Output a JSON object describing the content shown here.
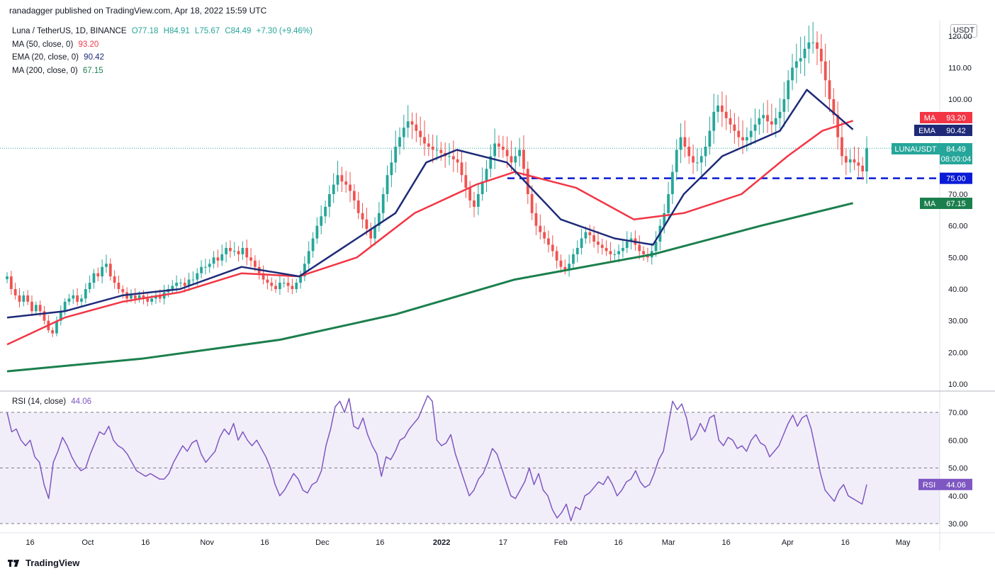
{
  "header": {
    "published": "ranadagger published on TradingView.com, Apr 18, 2022 15:59 UTC"
  },
  "legend": {
    "symbol": "Luna / TetherUS, 1D, BINANCE",
    "ohlc": {
      "o": "O77.18",
      "h": "H84.91",
      "l": "L75.67",
      "c": "C84.49",
      "chg": "+7.30 (+9.46%)"
    },
    "ma50": {
      "label": "MA (50, close, 0)",
      "value": "93.20",
      "color": "#f23645"
    },
    "ema20": {
      "label": "EMA (20, close, 0)",
      "value": "90.42",
      "color": "#1e2a78"
    },
    "ma200": {
      "label": "MA (200, close, 0)",
      "value": "67.15",
      "color": "#1b7f4d"
    }
  },
  "rsi_legend": {
    "label": "RSI (14, close)",
    "value": "44.06",
    "color": "#7e57c2"
  },
  "currency_button": "USDT",
  "price_tags": {
    "ma": {
      "name": "MA",
      "value": "93.20"
    },
    "ema": {
      "name": "EMA",
      "value": "90.42"
    },
    "last": {
      "name": "LUNAUSDT",
      "value": "84.49",
      "countdown": "08:00:04"
    },
    "level": {
      "value": "75.00"
    },
    "ma200": {
      "name": "MA",
      "value": "67.15"
    },
    "rsi": {
      "name": "RSI",
      "value": "44.06"
    }
  },
  "footer": {
    "brand": "TradingView"
  },
  "colors": {
    "up": "#26a69a",
    "down": "#ef5350",
    "ma50": "#f23645",
    "ema20": "#1e2a78",
    "ma200": "#1b7f4d",
    "rsi": "#7e57c2",
    "level": "#0a1bd6"
  },
  "chart_data": [
    {
      "type": "candlestick",
      "yaxis_ticks": [
        "10.00",
        "20.00",
        "30.00",
        "40.00",
        "50.00",
        "60.00",
        "70.00",
        "100.00",
        "110.00",
        "120.00"
      ],
      "ylim": [
        7,
        121
      ],
      "x_ticks": [
        "16",
        "Oct",
        "16",
        "Nov",
        "16",
        "Dec",
        "16",
        "2022",
        "17",
        "Feb",
        "16",
        "Mar",
        "16",
        "Apr",
        "16",
        "May"
      ],
      "x_range": [
        "2021-09-10",
        "2022-05-10"
      ],
      "horizontal_level": 75.0,
      "closes": [
        44,
        40,
        38,
        36,
        38,
        36,
        33,
        35,
        33,
        30,
        27,
        26,
        30,
        33,
        36,
        37,
        38,
        36,
        37,
        40,
        42,
        45,
        44,
        47,
        48,
        44,
        42,
        40,
        39,
        37,
        38,
        37,
        38,
        37,
        36,
        37,
        38,
        37,
        39,
        40,
        41,
        42,
        42,
        41,
        43,
        43,
        45,
        47,
        47,
        48,
        50,
        49,
        51,
        53,
        52,
        52,
        51,
        53,
        50,
        49,
        47,
        45,
        43,
        42,
        41,
        40,
        42,
        42,
        41,
        40,
        42,
        44,
        48,
        52,
        56,
        60,
        63,
        66,
        70,
        73,
        76,
        74,
        73,
        71,
        68,
        64,
        62,
        59,
        56,
        60,
        64,
        70,
        76,
        80,
        85,
        88,
        91,
        93,
        92,
        90,
        88,
        86,
        85,
        84,
        84,
        83,
        82,
        82,
        81,
        80,
        76,
        72,
        68,
        66,
        70,
        74,
        78,
        82,
        86,
        85,
        84,
        82,
        80,
        82,
        84,
        78,
        70,
        64,
        60,
        58,
        56,
        54,
        52,
        49,
        47,
        46,
        48,
        51,
        53,
        56,
        58,
        57,
        55,
        54,
        53,
        52,
        51,
        51,
        52,
        53,
        55,
        56,
        54,
        52,
        51,
        50,
        52,
        55,
        60,
        64,
        70,
        77,
        84,
        88,
        85,
        82,
        80,
        80,
        82,
        85,
        90,
        96,
        98,
        96,
        94,
        92,
        90,
        88,
        87,
        88,
        90,
        92,
        94,
        95,
        93,
        92,
        94,
        96,
        100,
        106,
        110,
        112,
        113,
        116,
        118,
        118,
        116,
        112,
        106,
        100,
        95,
        88,
        82,
        80,
        81,
        80,
        79,
        77.19,
        84.49
      ],
      "ma50": [
        {
          "d": "2021-09-10",
          "v": 22.5
        },
        {
          "d": "2021-09-25",
          "v": 31
        },
        {
          "d": "2021-10-10",
          "v": 36
        },
        {
          "d": "2021-10-25",
          "v": 39
        },
        {
          "d": "2021-11-10",
          "v": 45
        },
        {
          "d": "2021-11-25",
          "v": 44
        },
        {
          "d": "2021-12-10",
          "v": 50
        },
        {
          "d": "2021-12-25",
          "v": 64
        },
        {
          "d": "2022-01-10",
          "v": 73
        },
        {
          "d": "2022-01-20",
          "v": 77
        },
        {
          "d": "2022-02-05",
          "v": 72
        },
        {
          "d": "2022-02-20",
          "v": 62
        },
        {
          "d": "2022-03-05",
          "v": 64
        },
        {
          "d": "2022-03-20",
          "v": 70
        },
        {
          "d": "2022-04-01",
          "v": 82
        },
        {
          "d": "2022-04-10",
          "v": 90
        },
        {
          "d": "2022-04-18",
          "v": 93.2
        }
      ],
      "ema20": [
        {
          "d": "2021-09-10",
          "v": 31
        },
        {
          "d": "2021-09-25",
          "v": 33
        },
        {
          "d": "2021-10-10",
          "v": 38
        },
        {
          "d": "2021-10-25",
          "v": 40
        },
        {
          "d": "2021-11-10",
          "v": 47
        },
        {
          "d": "2021-11-25",
          "v": 44
        },
        {
          "d": "2021-12-05",
          "v": 52
        },
        {
          "d": "2021-12-20",
          "v": 64
        },
        {
          "d": "2021-12-28",
          "v": 80
        },
        {
          "d": "2022-01-05",
          "v": 84
        },
        {
          "d": "2022-01-18",
          "v": 80
        },
        {
          "d": "2022-02-01",
          "v": 62
        },
        {
          "d": "2022-02-15",
          "v": 56
        },
        {
          "d": "2022-02-25",
          "v": 54
        },
        {
          "d": "2022-03-05",
          "v": 70
        },
        {
          "d": "2022-03-15",
          "v": 82
        },
        {
          "d": "2022-03-30",
          "v": 90
        },
        {
          "d": "2022-04-06",
          "v": 103
        },
        {
          "d": "2022-04-18",
          "v": 90.42
        }
      ],
      "ma200": [
        {
          "d": "2021-09-10",
          "v": 14
        },
        {
          "d": "2021-10-15",
          "v": 18
        },
        {
          "d": "2021-11-20",
          "v": 24
        },
        {
          "d": "2021-12-20",
          "v": 32
        },
        {
          "d": "2022-01-20",
          "v": 43
        },
        {
          "d": "2022-02-25",
          "v": 51
        },
        {
          "d": "2022-03-25",
          "v": 60
        },
        {
          "d": "2022-04-18",
          "v": 67.15
        }
      ]
    },
    {
      "type": "line",
      "name": "RSI (14, close)",
      "yaxis_ticks": [
        "30.00",
        "40.00",
        "50.00",
        "60.00",
        "70.00"
      ],
      "ylim": [
        28,
        78
      ],
      "bands": [
        30,
        50,
        70
      ],
      "values": [
        70,
        63,
        64,
        60,
        58,
        60,
        54,
        52,
        44,
        39,
        52,
        56,
        61,
        58,
        54,
        51,
        49,
        50,
        55,
        59,
        63,
        62,
        65,
        60,
        58,
        57,
        55,
        52,
        49,
        48,
        47,
        48,
        47,
        46,
        46,
        48,
        52,
        55,
        58,
        56,
        59,
        60,
        55,
        52,
        54,
        56,
        61,
        64,
        62,
        66,
        60,
        63,
        60,
        58,
        60,
        57,
        54,
        50,
        44,
        40,
        42,
        45,
        48,
        46,
        42,
        41,
        44,
        45,
        49,
        58,
        64,
        72,
        74,
        70,
        75,
        65,
        64,
        68,
        62,
        58,
        55,
        47,
        54,
        53,
        56,
        60,
        61,
        64,
        66,
        68,
        72,
        76,
        74,
        60,
        58,
        59,
        62,
        55,
        50,
        45,
        40,
        42,
        46,
        48,
        52,
        57,
        55,
        50,
        45,
        40,
        39,
        42,
        45,
        50,
        44,
        48,
        42,
        40,
        35,
        32,
        34,
        37,
        31,
        36,
        35,
        40,
        41,
        43,
        45,
        44,
        47,
        44,
        40,
        42,
        45,
        46,
        49,
        45,
        43,
        44,
        48,
        53,
        56,
        65,
        74,
        71,
        73,
        68,
        60,
        62,
        66,
        63,
        68,
        69,
        60,
        58,
        61,
        60,
        57,
        58,
        56,
        60,
        62,
        59,
        58,
        54,
        56,
        58,
        62,
        66,
        69,
        65,
        68,
        69,
        64,
        56,
        48,
        42,
        40,
        38,
        42,
        44,
        40,
        39,
        38,
        37,
        44.06
      ]
    }
  ]
}
